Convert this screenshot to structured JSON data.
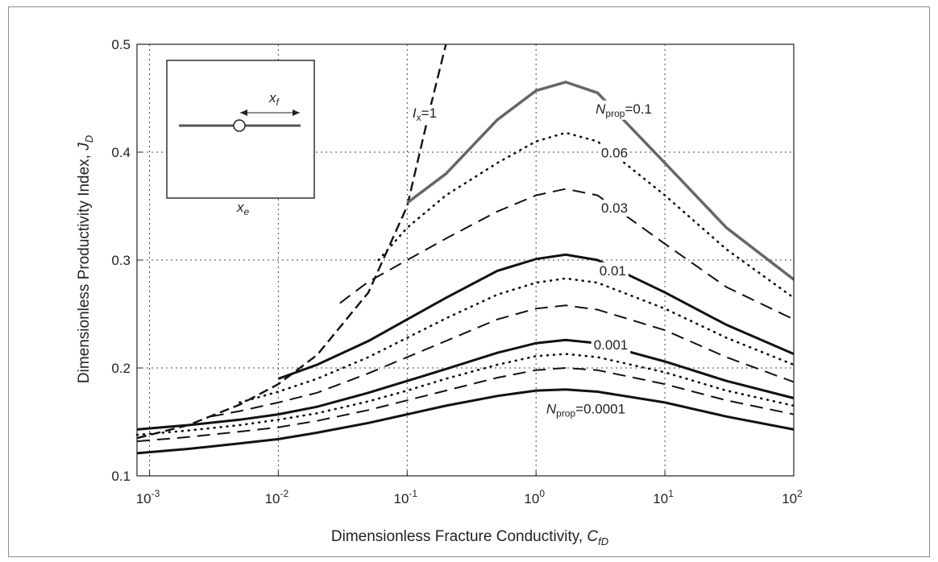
{
  "chart_data": {
    "type": "line",
    "xscale": "log",
    "xlim": [
      0.0008,
      100
    ],
    "ylim": [
      0.1,
      0.5
    ],
    "grid": true,
    "x_ticks": [
      {
        "value": 0.001,
        "base": "10",
        "exp": "-3"
      },
      {
        "value": 0.01,
        "base": "10",
        "exp": "-2"
      },
      {
        "value": 0.1,
        "base": "10",
        "exp": "-1"
      },
      {
        "value": 1,
        "base": "10",
        "exp": "0"
      },
      {
        "value": 10,
        "base": "10",
        "exp": "1"
      },
      {
        "value": 100,
        "base": "10",
        "exp": "2"
      }
    ],
    "y_ticks": [
      {
        "value": 0.1,
        "label": "0.1"
      },
      {
        "value": 0.2,
        "label": "0.2"
      },
      {
        "value": 0.3,
        "label": "0.3"
      },
      {
        "value": 0.4,
        "label": "0.4"
      },
      {
        "value": 0.5,
        "label": "0.5"
      }
    ],
    "xlabel": {
      "text": "Dimensionless Fracture Conductivity, ",
      "sym": "C",
      "sub": "fD"
    },
    "ylabel": {
      "text": "Dimensionless Productivity Index, ",
      "sym": "J",
      "sub": "D"
    },
    "annotations": [
      {
        "id": "ix",
        "sym": "I",
        "sub": "x",
        "rest": "=1",
        "at": [
          0.11,
          0.432
        ]
      },
      {
        "id": "n01",
        "sym": "N",
        "sub": "prop",
        "rest": "=0.1",
        "at": [
          2.9,
          0.436
        ]
      },
      {
        "id": "n006",
        "rest": "0.06",
        "at": [
          3.2,
          0.395
        ]
      },
      {
        "id": "n003",
        "rest": "0.03",
        "at": [
          3.2,
          0.344
        ]
      },
      {
        "id": "n001",
        "rest": "0.01",
        "at": [
          3.1,
          0.286
        ]
      },
      {
        "id": "n0001",
        "rest": "0.001",
        "at": [
          2.8,
          0.217
        ]
      },
      {
        "id": "n00001",
        "sym": "N",
        "sub": "prop",
        "rest": "=0.0001",
        "at": [
          1.2,
          0.158
        ]
      }
    ],
    "inset": {
      "xf_label": {
        "sym": "x",
        "sub": "f"
      },
      "xe_label": {
        "sym": "x",
        "sub": "e"
      }
    },
    "series": [
      {
        "style": "ix-dashed",
        "x": [
          0.0008,
          0.002,
          0.005,
          0.01,
          0.02,
          0.05,
          0.1,
          0.15,
          0.2
        ],
        "y": [
          0.135,
          0.147,
          0.166,
          0.185,
          0.212,
          0.27,
          0.35,
          0.44,
          0.5
        ]
      },
      {
        "style": "solid-gray",
        "x": [
          0.1,
          0.2,
          0.5,
          1,
          1.7,
          3,
          10,
          30,
          100
        ],
        "y": [
          0.353,
          0.38,
          0.43,
          0.457,
          0.465,
          0.455,
          0.39,
          0.33,
          0.282
        ]
      },
      {
        "style": "dotted",
        "x": [
          0.06,
          0.1,
          0.2,
          0.5,
          1,
          1.7,
          3,
          10,
          30,
          100
        ],
        "y": [
          0.3,
          0.33,
          0.36,
          0.39,
          0.41,
          0.418,
          0.41,
          0.36,
          0.31,
          0.265
        ]
      },
      {
        "style": "dashed",
        "x": [
          0.03,
          0.05,
          0.1,
          0.2,
          0.5,
          1,
          1.7,
          3,
          10,
          30,
          100
        ],
        "y": [
          0.26,
          0.28,
          0.3,
          0.32,
          0.345,
          0.36,
          0.366,
          0.36,
          0.315,
          0.275,
          0.245
        ]
      },
      {
        "style": "solid",
        "x": [
          0.01,
          0.02,
          0.05,
          0.1,
          0.2,
          0.5,
          1,
          1.7,
          3,
          10,
          30,
          100
        ],
        "y": [
          0.19,
          0.203,
          0.225,
          0.245,
          0.265,
          0.29,
          0.301,
          0.305,
          0.3,
          0.27,
          0.24,
          0.213
        ]
      },
      {
        "style": "dotted",
        "x": [
          0.005,
          0.01,
          0.02,
          0.05,
          0.1,
          0.2,
          0.5,
          1,
          1.7,
          3,
          10,
          30,
          100
        ],
        "y": [
          0.168,
          0.178,
          0.19,
          0.21,
          0.228,
          0.246,
          0.268,
          0.279,
          0.283,
          0.279,
          0.255,
          0.228,
          0.203
        ]
      },
      {
        "style": "dashed",
        "x": [
          0.003,
          0.005,
          0.01,
          0.02,
          0.05,
          0.1,
          0.2,
          0.5,
          1,
          1.7,
          3,
          10,
          30,
          100
        ],
        "y": [
          0.155,
          0.16,
          0.168,
          0.177,
          0.195,
          0.21,
          0.225,
          0.245,
          0.255,
          0.258,
          0.254,
          0.235,
          0.21,
          0.187
        ]
      },
      {
        "style": "solid",
        "x": [
          0.0008,
          0.002,
          0.005,
          0.01,
          0.02,
          0.05,
          0.1,
          0.2,
          0.5,
          1,
          1.7,
          3,
          10,
          30,
          100
        ],
        "y": [
          0.143,
          0.147,
          0.152,
          0.157,
          0.164,
          0.177,
          0.188,
          0.199,
          0.214,
          0.223,
          0.226,
          0.223,
          0.206,
          0.188,
          0.172
        ]
      },
      {
        "style": "dotted",
        "x": [
          0.0008,
          0.002,
          0.005,
          0.01,
          0.02,
          0.05,
          0.1,
          0.2,
          0.5,
          1,
          1.7,
          3,
          10,
          30,
          100
        ],
        "y": [
          0.138,
          0.142,
          0.147,
          0.152,
          0.158,
          0.169,
          0.179,
          0.19,
          0.203,
          0.211,
          0.213,
          0.21,
          0.196,
          0.179,
          0.165
        ]
      },
      {
        "style": "dashed",
        "x": [
          0.0008,
          0.002,
          0.005,
          0.01,
          0.02,
          0.05,
          0.1,
          0.2,
          0.5,
          1,
          1.7,
          3,
          10,
          30,
          100
        ],
        "y": [
          0.132,
          0.136,
          0.141,
          0.145,
          0.151,
          0.161,
          0.17,
          0.179,
          0.191,
          0.198,
          0.2,
          0.198,
          0.185,
          0.17,
          0.157
        ]
      },
      {
        "style": "solid",
        "x": [
          0.0008,
          0.002,
          0.005,
          0.01,
          0.02,
          0.05,
          0.1,
          0.2,
          0.5,
          1,
          1.7,
          3,
          10,
          30,
          100
        ],
        "y": [
          0.121,
          0.125,
          0.13,
          0.134,
          0.14,
          0.149,
          0.157,
          0.165,
          0.174,
          0.179,
          0.18,
          0.178,
          0.168,
          0.155,
          0.143
        ]
      }
    ]
  }
}
